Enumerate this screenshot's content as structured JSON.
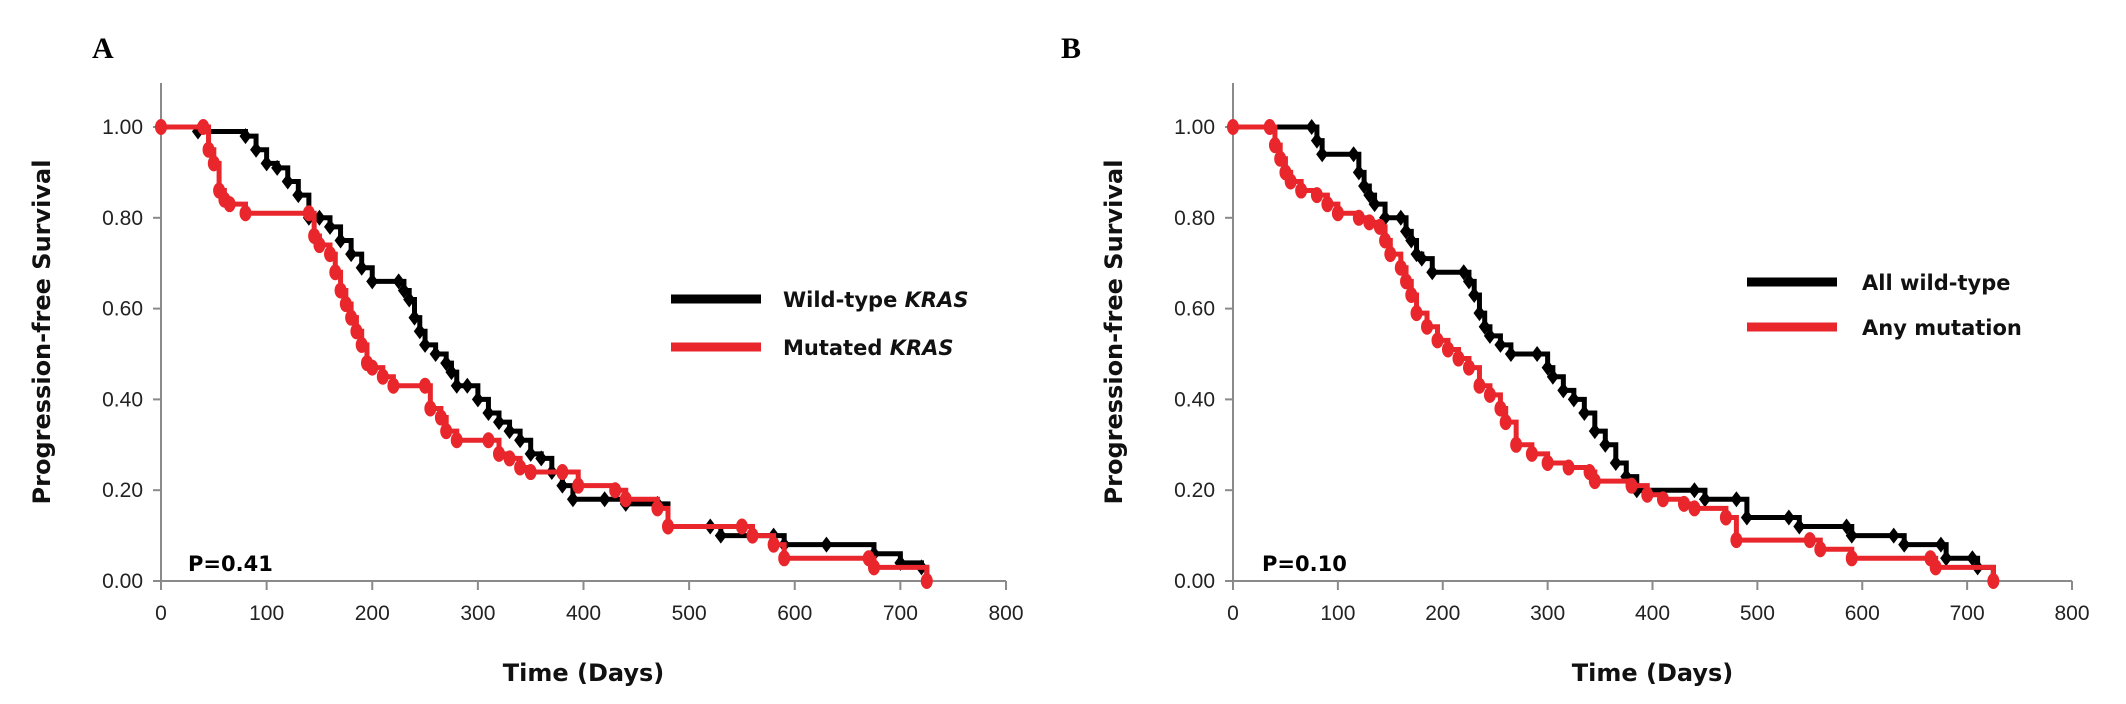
{
  "chart_data": [
    {
      "type": "line",
      "panel_label": "A",
      "title": "",
      "xlabel": "Time (Days)",
      "ylabel": "Progression-free Survival",
      "xlim": [
        0,
        800
      ],
      "ylim": [
        0,
        1.0
      ],
      "xticks": [
        "0",
        "100",
        "200",
        "300",
        "400",
        "500",
        "600",
        "700",
        "800"
      ],
      "yticks": [
        "0.00",
        "0.20",
        "0.40",
        "0.60",
        "0.80",
        "1.00"
      ],
      "grid": false,
      "legend_position": "right",
      "annotation": "P=0.41",
      "series": [
        {
          "name": "Wild-type",
          "name_italic": "KRAS",
          "color": "#000000",
          "marker": "diamond",
          "points": [
            [
              35,
              0.99
            ],
            [
              80,
              0.98
            ],
            [
              90,
              0.95
            ],
            [
              100,
              0.92
            ],
            [
              110,
              0.91
            ],
            [
              120,
              0.88
            ],
            [
              130,
              0.85
            ],
            [
              140,
              0.8
            ],
            [
              150,
              0.8
            ],
            [
              160,
              0.78
            ],
            [
              170,
              0.75
            ],
            [
              180,
              0.72
            ],
            [
              190,
              0.69
            ],
            [
              200,
              0.66
            ],
            [
              225,
              0.66
            ],
            [
              230,
              0.64
            ],
            [
              235,
              0.62
            ],
            [
              240,
              0.58
            ],
            [
              245,
              0.55
            ],
            [
              250,
              0.52
            ],
            [
              260,
              0.5
            ],
            [
              270,
              0.48
            ],
            [
              275,
              0.46
            ],
            [
              280,
              0.43
            ],
            [
              290,
              0.43
            ],
            [
              300,
              0.4
            ],
            [
              310,
              0.37
            ],
            [
              320,
              0.35
            ],
            [
              330,
              0.33
            ],
            [
              340,
              0.31
            ],
            [
              350,
              0.28
            ],
            [
              360,
              0.27
            ],
            [
              370,
              0.24
            ],
            [
              380,
              0.21
            ],
            [
              390,
              0.18
            ],
            [
              420,
              0.18
            ],
            [
              440,
              0.17
            ],
            [
              470,
              0.17
            ],
            [
              480,
              0.12
            ],
            [
              520,
              0.12
            ],
            [
              530,
              0.1
            ],
            [
              580,
              0.1
            ],
            [
              590,
              0.08
            ],
            [
              630,
              0.08
            ],
            [
              675,
              0.06
            ],
            [
              700,
              0.04
            ],
            [
              720,
              0.03
            ],
            [
              725,
              0.0
            ]
          ]
        },
        {
          "name": "Mutated",
          "name_italic": "KRAS",
          "color": "#e8262b",
          "marker": "circle",
          "points": [
            [
              0,
              1.0
            ],
            [
              40,
              1.0
            ],
            [
              45,
              0.95
            ],
            [
              50,
              0.92
            ],
            [
              55,
              0.86
            ],
            [
              60,
              0.84
            ],
            [
              65,
              0.83
            ],
            [
              80,
              0.81
            ],
            [
              140,
              0.81
            ],
            [
              145,
              0.76
            ],
            [
              150,
              0.74
            ],
            [
              160,
              0.72
            ],
            [
              165,
              0.68
            ],
            [
              170,
              0.64
            ],
            [
              175,
              0.61
            ],
            [
              180,
              0.58
            ],
            [
              185,
              0.55
            ],
            [
              190,
              0.52
            ],
            [
              195,
              0.48
            ],
            [
              200,
              0.47
            ],
            [
              210,
              0.45
            ],
            [
              220,
              0.43
            ],
            [
              250,
              0.43
            ],
            [
              255,
              0.38
            ],
            [
              265,
              0.36
            ],
            [
              270,
              0.33
            ],
            [
              280,
              0.31
            ],
            [
              310,
              0.31
            ],
            [
              320,
              0.28
            ],
            [
              330,
              0.27
            ],
            [
              340,
              0.25
            ],
            [
              350,
              0.24
            ],
            [
              380,
              0.24
            ],
            [
              395,
              0.21
            ],
            [
              430,
              0.2
            ],
            [
              440,
              0.18
            ],
            [
              470,
              0.16
            ],
            [
              480,
              0.12
            ],
            [
              550,
              0.12
            ],
            [
              560,
              0.1
            ],
            [
              580,
              0.08
            ],
            [
              590,
              0.05
            ],
            [
              670,
              0.05
            ],
            [
              675,
              0.03
            ],
            [
              725,
              0.0
            ]
          ]
        }
      ]
    },
    {
      "type": "line",
      "panel_label": "B",
      "title": "",
      "xlabel": "Time (Days)",
      "ylabel": "Progression-free Survival",
      "xlim": [
        0,
        800
      ],
      "ylim": [
        0,
        1.0
      ],
      "xticks": [
        "0",
        "100",
        "200",
        "300",
        "400",
        "500",
        "600",
        "700",
        "800"
      ],
      "yticks": [
        "0.00",
        "0.20",
        "0.40",
        "0.60",
        "0.80",
        "1.00"
      ],
      "grid": false,
      "legend_position": "right",
      "annotation": "P=0.10",
      "series": [
        {
          "name": "All wild-type",
          "name_italic": "",
          "color": "#000000",
          "marker": "diamond",
          "points": [
            [
              0,
              1.0
            ],
            [
              75,
              1.0
            ],
            [
              80,
              0.97
            ],
            [
              85,
              0.94
            ],
            [
              115,
              0.94
            ],
            [
              120,
              0.9
            ],
            [
              125,
              0.87
            ],
            [
              130,
              0.85
            ],
            [
              135,
              0.83
            ],
            [
              145,
              0.8
            ],
            [
              160,
              0.8
            ],
            [
              165,
              0.77
            ],
            [
              170,
              0.75
            ],
            [
              175,
              0.72
            ],
            [
              180,
              0.71
            ],
            [
              190,
              0.68
            ],
            [
              220,
              0.68
            ],
            [
              225,
              0.66
            ],
            [
              230,
              0.63
            ],
            [
              235,
              0.59
            ],
            [
              240,
              0.56
            ],
            [
              245,
              0.54
            ],
            [
              255,
              0.52
            ],
            [
              265,
              0.5
            ],
            [
              290,
              0.5
            ],
            [
              300,
              0.47
            ],
            [
              305,
              0.45
            ],
            [
              315,
              0.42
            ],
            [
              325,
              0.4
            ],
            [
              335,
              0.37
            ],
            [
              345,
              0.33
            ],
            [
              355,
              0.3
            ],
            [
              365,
              0.26
            ],
            [
              375,
              0.23
            ],
            [
              385,
              0.2
            ],
            [
              440,
              0.2
            ],
            [
              450,
              0.18
            ],
            [
              480,
              0.18
            ],
            [
              490,
              0.14
            ],
            [
              530,
              0.14
            ],
            [
              540,
              0.12
            ],
            [
              585,
              0.12
            ],
            [
              590,
              0.1
            ],
            [
              630,
              0.1
            ],
            [
              640,
              0.08
            ],
            [
              675,
              0.08
            ],
            [
              680,
              0.05
            ],
            [
              705,
              0.05
            ],
            [
              710,
              0.03
            ],
            [
              725,
              0.0
            ]
          ]
        },
        {
          "name": "Any mutation",
          "name_italic": "",
          "color": "#e8262b",
          "marker": "circle",
          "points": [
            [
              0,
              1.0
            ],
            [
              35,
              1.0
            ],
            [
              40,
              0.96
            ],
            [
              45,
              0.93
            ],
            [
              50,
              0.9
            ],
            [
              55,
              0.88
            ],
            [
              65,
              0.86
            ],
            [
              80,
              0.85
            ],
            [
              90,
              0.83
            ],
            [
              100,
              0.81
            ],
            [
              120,
              0.8
            ],
            [
              130,
              0.79
            ],
            [
              140,
              0.78
            ],
            [
              145,
              0.75
            ],
            [
              150,
              0.72
            ],
            [
              160,
              0.69
            ],
            [
              165,
              0.66
            ],
            [
              170,
              0.63
            ],
            [
              175,
              0.59
            ],
            [
              185,
              0.56
            ],
            [
              195,
              0.53
            ],
            [
              205,
              0.51
            ],
            [
              215,
              0.49
            ],
            [
              225,
              0.47
            ],
            [
              235,
              0.43
            ],
            [
              245,
              0.41
            ],
            [
              255,
              0.38
            ],
            [
              260,
              0.35
            ],
            [
              270,
              0.3
            ],
            [
              285,
              0.28
            ],
            [
              300,
              0.26
            ],
            [
              320,
              0.25
            ],
            [
              340,
              0.24
            ],
            [
              345,
              0.22
            ],
            [
              380,
              0.21
            ],
            [
              395,
              0.19
            ],
            [
              410,
              0.18
            ],
            [
              430,
              0.17
            ],
            [
              440,
              0.16
            ],
            [
              470,
              0.14
            ],
            [
              480,
              0.09
            ],
            [
              550,
              0.09
            ],
            [
              560,
              0.07
            ],
            [
              590,
              0.05
            ],
            [
              665,
              0.05
            ],
            [
              670,
              0.03
            ],
            [
              725,
              0.0
            ]
          ]
        }
      ]
    }
  ]
}
